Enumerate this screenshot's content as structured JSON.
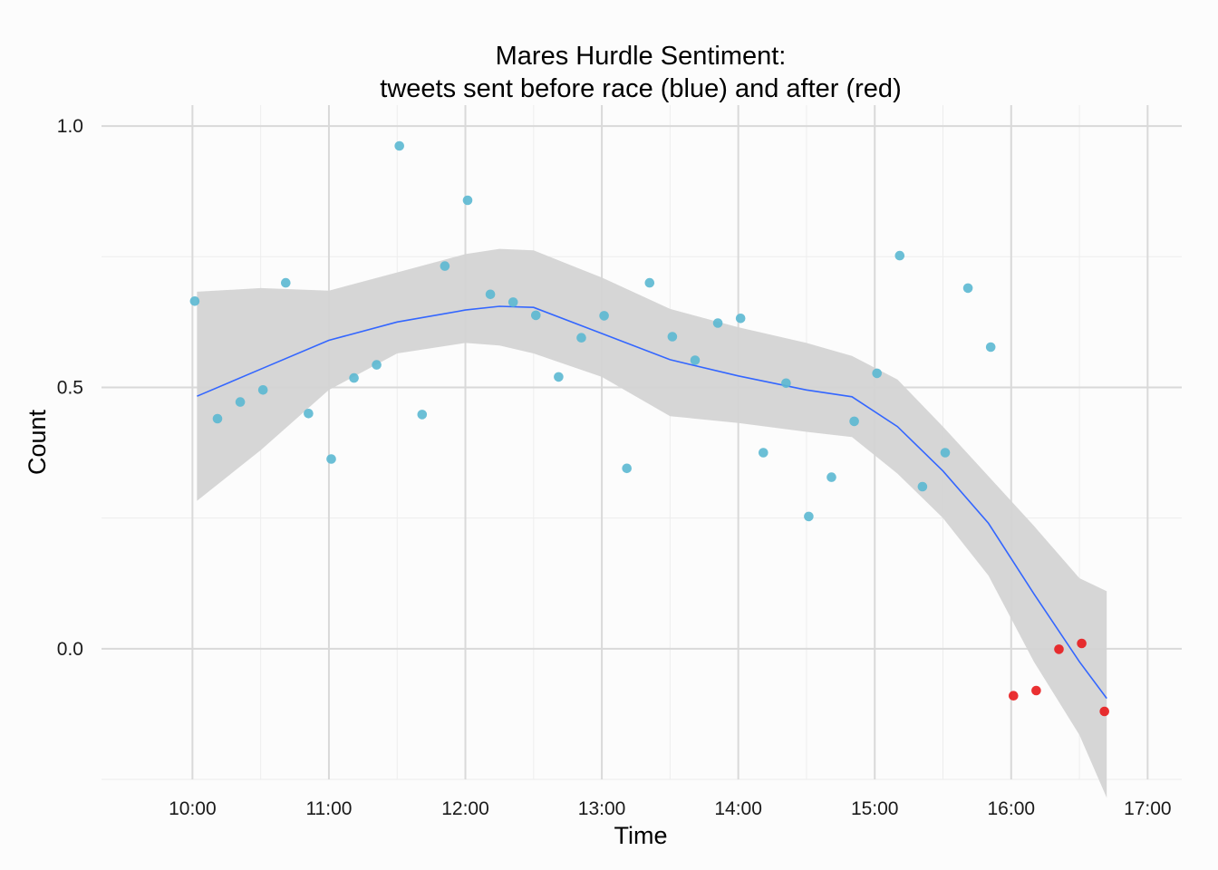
{
  "chart_data": {
    "type": "scatter",
    "title_line1": "Mares Hurdle Sentiment:",
    "title_line2": "tweets sent before race (blue) and after (red)",
    "xlabel": "Time",
    "ylabel": "Count",
    "x_tick_labels": [
      "10:00",
      "11:00",
      "12:00",
      "13:00",
      "14:00",
      "15:00",
      "16:00",
      "17:00"
    ],
    "y_tick_labels": [
      "0.0",
      "0.5",
      "1.0"
    ],
    "y_ticks": [
      0.0,
      0.5,
      1.0
    ],
    "xlim": [
      "09:20",
      "17:15"
    ],
    "ylim": [
      -0.25,
      1.04
    ],
    "grid": true,
    "colors": {
      "before": "#5bb8d1",
      "after": "#e8191c",
      "smooth_line": "#3366ff",
      "confidence_band": "#d4d4d4",
      "grid_major": "#d9d9d9",
      "grid_minor": "#ededed"
    },
    "series": [
      {
        "name": "before",
        "points": [
          [
            "10:01",
            0.665
          ],
          [
            "10:11",
            0.44
          ],
          [
            "10:21",
            0.472
          ],
          [
            "10:31",
            0.495
          ],
          [
            "10:41",
            0.7
          ],
          [
            "10:51",
            0.45
          ],
          [
            "11:01",
            0.363
          ],
          [
            "11:11",
            0.518
          ],
          [
            "11:21",
            0.543
          ],
          [
            "11:31",
            0.962
          ],
          [
            "11:41",
            0.448
          ],
          [
            "11:51",
            0.732
          ],
          [
            "12:01",
            0.858
          ],
          [
            "12:11",
            0.678
          ],
          [
            "12:21",
            0.663
          ],
          [
            "12:31",
            0.638
          ],
          [
            "12:41",
            0.52
          ],
          [
            "12:51",
            0.595
          ],
          [
            "13:01",
            0.637
          ],
          [
            "13:11",
            0.345
          ],
          [
            "13:21",
            0.7
          ],
          [
            "13:31",
            0.597
          ],
          [
            "13:41",
            0.552
          ],
          [
            "13:51",
            0.623
          ],
          [
            "14:01",
            0.632
          ],
          [
            "14:11",
            0.375
          ],
          [
            "14:21",
            0.508
          ],
          [
            "14:31",
            0.253
          ],
          [
            "14:41",
            0.328
          ],
          [
            "14:51",
            0.435
          ],
          [
            "15:01",
            0.527
          ],
          [
            "15:11",
            0.752
          ],
          [
            "15:21",
            0.31
          ],
          [
            "15:31",
            0.375
          ],
          [
            "15:41",
            0.69
          ],
          [
            "15:51",
            0.577
          ]
        ]
      },
      {
        "name": "after",
        "points": [
          [
            "16:01",
            -0.09
          ],
          [
            "16:11",
            -0.08
          ],
          [
            "16:21",
            -0.001
          ],
          [
            "16:31",
            0.01
          ],
          [
            "16:41",
            -0.12
          ]
        ]
      }
    ],
    "smooth": {
      "x": [
        "10:02",
        "10:30",
        "11:00",
        "11:30",
        "12:00",
        "12:15",
        "12:30",
        "13:00",
        "13:30",
        "14:00",
        "14:30",
        "14:50",
        "15:10",
        "15:30",
        "15:50",
        "16:10",
        "16:30",
        "16:42"
      ],
      "y": [
        0.483,
        0.535,
        0.59,
        0.625,
        0.648,
        0.655,
        0.653,
        0.603,
        0.553,
        0.522,
        0.495,
        0.482,
        0.425,
        0.34,
        0.24,
        0.105,
        -0.025,
        -0.095
      ],
      "lower": [
        0.283,
        0.38,
        0.495,
        0.565,
        0.585,
        0.58,
        0.565,
        0.52,
        0.445,
        0.432,
        0.415,
        0.405,
        0.335,
        0.25,
        0.14,
        -0.025,
        -0.165,
        -0.285
      ],
      "upper": [
        0.683,
        0.69,
        0.685,
        0.72,
        0.755,
        0.765,
        0.762,
        0.71,
        0.65,
        0.615,
        0.585,
        0.56,
        0.515,
        0.425,
        0.33,
        0.235,
        0.135,
        0.11
      ]
    }
  }
}
